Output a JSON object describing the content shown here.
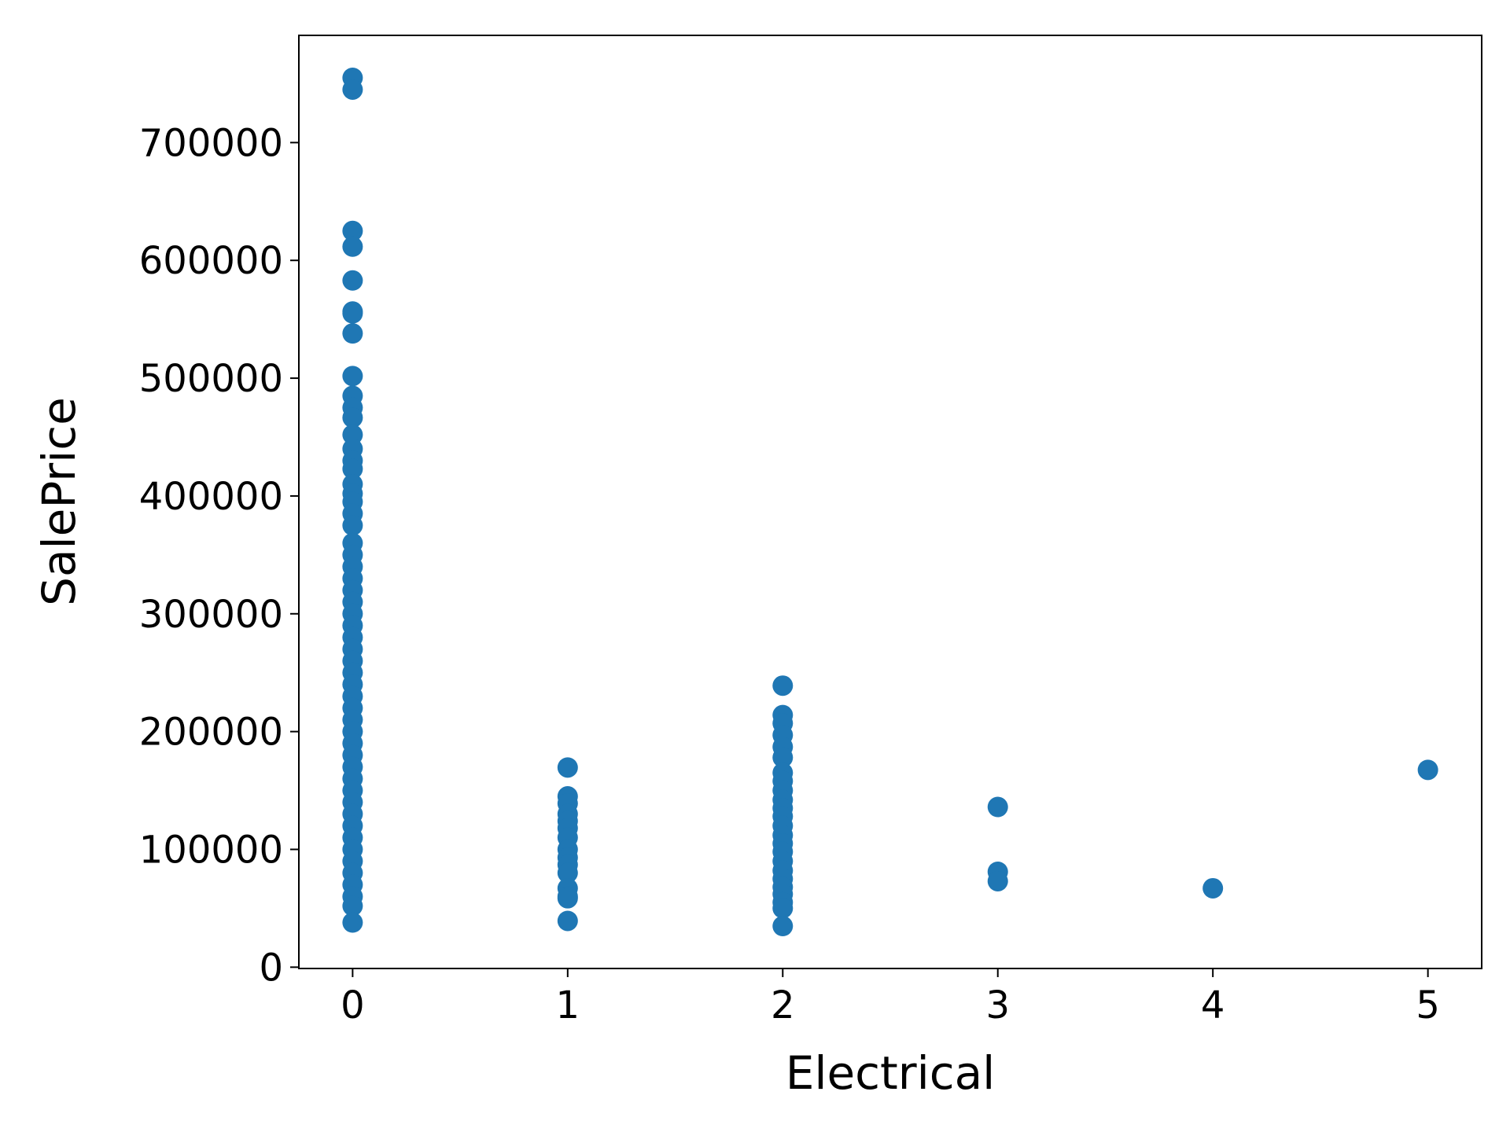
{
  "chart_data": {
    "type": "scatter",
    "x_label": "Electrical",
    "y_label": "SalePrice",
    "x": [
      0,
      0,
      0,
      0,
      0,
      0,
      0,
      0,
      0,
      0,
      0,
      0,
      0,
      0,
      0,
      0,
      0,
      0,
      0,
      0,
      0,
      0,
      0,
      0,
      0,
      0,
      0,
      0,
      0,
      0,
      0,
      0,
      0,
      0,
      0,
      0,
      0,
      0,
      0,
      0,
      0,
      0,
      0,
      0,
      0,
      0,
      0,
      0,
      0,
      0,
      0,
      0,
      0,
      0,
      1,
      1,
      1,
      1,
      1,
      1,
      1,
      1,
      1,
      1,
      1,
      1,
      1,
      1,
      1,
      2,
      2,
      2,
      2,
      2,
      2,
      2,
      2,
      2,
      2,
      2,
      2,
      2,
      2,
      2,
      2,
      2,
      2,
      2,
      2,
      2,
      2,
      2,
      2,
      3,
      3,
      3,
      4,
      5
    ],
    "values": [
      755000,
      745000,
      625000,
      611657,
      582933,
      556581,
      555000,
      538000,
      501837,
      485000,
      475000,
      466500,
      451950,
      440000,
      430000,
      423000,
      410000,
      402000,
      395000,
      385000,
      375000,
      360000,
      350000,
      340000,
      330000,
      320000,
      310000,
      300000,
      290000,
      280000,
      270000,
      260000,
      250000,
      240000,
      230000,
      220000,
      210000,
      200000,
      190000,
      180000,
      170000,
      160000,
      150000,
      140000,
      130000,
      120000,
      110000,
      100000,
      90000,
      80000,
      70000,
      60000,
      52000,
      37900,
      169500,
      145000,
      139000,
      130000,
      124000,
      118000,
      110000,
      100000,
      93000,
      87000,
      80000,
      67000,
      60000,
      58500,
      39300,
      239000,
      214000,
      207000,
      197000,
      187000,
      178000,
      165000,
      158000,
      150000,
      142000,
      135000,
      128000,
      120000,
      112000,
      105000,
      98000,
      90000,
      82000,
      75000,
      68000,
      62000,
      55000,
      50000,
      34900,
      136000,
      81000,
      73000,
      67000,
      167500
    ],
    "color": "#1f77b4",
    "xlim": [
      -0.25,
      5.25
    ],
    "xticks": [
      0,
      1,
      2,
      3,
      4,
      5
    ],
    "ylim": [
      -1105,
      791005
    ],
    "yticks": [
      0,
      100000,
      200000,
      300000,
      400000,
      500000,
      600000,
      700000
    ]
  }
}
